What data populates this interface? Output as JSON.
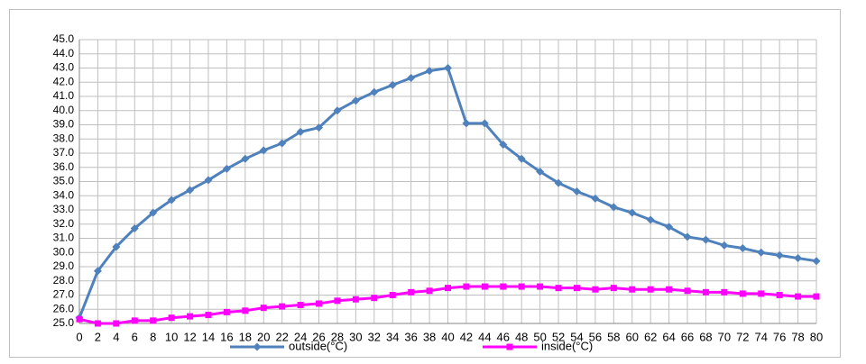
{
  "chart_data": {
    "type": "line",
    "x": [
      0,
      2,
      4,
      6,
      8,
      10,
      12,
      14,
      16,
      18,
      20,
      22,
      24,
      26,
      28,
      30,
      32,
      34,
      36,
      38,
      40,
      42,
      44,
      46,
      48,
      50,
      52,
      54,
      56,
      58,
      60,
      62,
      64,
      66,
      68,
      70,
      72,
      74,
      76,
      78,
      80
    ],
    "series": [
      {
        "name": "outside(°C)",
        "color": "#4f81bd",
        "marker": "diamond",
        "values": [
          25.4,
          28.7,
          30.4,
          31.7,
          32.8,
          33.7,
          34.4,
          35.1,
          35.9,
          36.6,
          37.2,
          37.7,
          38.5,
          38.8,
          40.0,
          40.7,
          41.3,
          41.8,
          42.3,
          42.8,
          43.0,
          39.1,
          39.1,
          37.6,
          36.6,
          35.7,
          34.9,
          34.3,
          33.8,
          33.2,
          32.8,
          32.3,
          31.8,
          31.1,
          30.9,
          30.5,
          30.3,
          30.0,
          29.8,
          29.6,
          29.4
        ]
      },
      {
        "name": "inside(°C)",
        "color": "#ff00ff",
        "marker": "square",
        "values": [
          25.3,
          25.0,
          25.0,
          25.2,
          25.2,
          25.4,
          25.5,
          25.6,
          25.8,
          25.9,
          26.1,
          26.2,
          26.3,
          26.4,
          26.6,
          26.7,
          26.8,
          27.0,
          27.2,
          27.3,
          27.5,
          27.6,
          27.6,
          27.6,
          27.6,
          27.6,
          27.5,
          27.5,
          27.4,
          27.5,
          27.4,
          27.4,
          27.4,
          27.3,
          27.2,
          27.2,
          27.1,
          27.1,
          27.0,
          26.9,
          26.9
        ]
      }
    ],
    "xlim": [
      0,
      80
    ],
    "xticks": [
      0,
      2,
      4,
      6,
      8,
      10,
      12,
      14,
      16,
      18,
      20,
      22,
      24,
      26,
      28,
      30,
      32,
      34,
      36,
      38,
      40,
      42,
      44,
      46,
      48,
      50,
      52,
      54,
      56,
      58,
      60,
      62,
      64,
      66,
      68,
      70,
      72,
      74,
      76,
      78,
      80
    ],
    "ylim": [
      25,
      45
    ],
    "yticks": [
      {
        "value": 25,
        "label": "25.0"
      },
      {
        "value": 26,
        "label": "26.0"
      },
      {
        "value": 27,
        "label": "27.0"
      },
      {
        "value": 28,
        "label": "28.0"
      },
      {
        "value": 29,
        "label": "29.0"
      },
      {
        "value": 30,
        "label": "30.0"
      },
      {
        "value": 31,
        "label": "31.0"
      },
      {
        "value": 32,
        "label": "32.0"
      },
      {
        "value": 33,
        "label": "33.0"
      },
      {
        "value": 34,
        "label": "34.0"
      },
      {
        "value": 35,
        "label": "35.0"
      },
      {
        "value": 36,
        "label": "36.0"
      },
      {
        "value": 37,
        "label": "37.0"
      },
      {
        "value": 38,
        "label": "38.0"
      },
      {
        "value": 39,
        "label": "39.0"
      },
      {
        "value": 40,
        "label": "40.0"
      },
      {
        "value": 41,
        "label": "41.0"
      },
      {
        "value": 42,
        "label": "42.0"
      },
      {
        "value": 43,
        "label": "43.0"
      },
      {
        "value": 44,
        "label": "44.0"
      },
      {
        "value": 45,
        "label": "45.0"
      }
    ],
    "grid": true,
    "legend": "bottom"
  }
}
